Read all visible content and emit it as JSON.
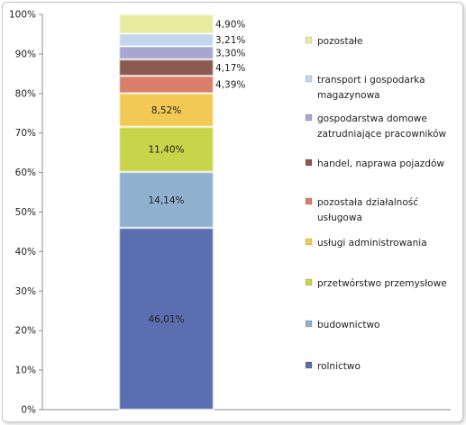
{
  "chart_data": {
    "type": "bar",
    "stacked": true,
    "percent_axis": true,
    "ylim": [
      0,
      100
    ],
    "yticks": [
      "0%",
      "10%",
      "20%",
      "30%",
      "40%",
      "50%",
      "60%",
      "70%",
      "80%",
      "90%",
      "100%"
    ],
    "legend_position": "right",
    "grid": false,
    "series": [
      {
        "name": "rolnictwo",
        "value": 46.01,
        "label": "46,01%",
        "color": "#5a6eb0"
      },
      {
        "name": "budownictwo",
        "value": 14.14,
        "label": "14,14%",
        "color": "#8fb0cf"
      },
      {
        "name": "przetwórstwo przemysłowe",
        "value": 11.4,
        "label": "11,40%",
        "color": "#c8d44a"
      },
      {
        "name": "usługi administrowania",
        "value": 8.52,
        "label": "8,52%",
        "color": "#f3c955"
      },
      {
        "name": "pozostała działalność usługowa",
        "value": 4.39,
        "label": "4,39%",
        "color": "#d97e6a"
      },
      {
        "name": "handel, naprawa pojazdów",
        "value": 4.17,
        "label": "4,17%",
        "color": "#8a5a4e"
      },
      {
        "name": "gospodarstwa domowe zatrudniające pracowników",
        "value": 3.3,
        "label": "3,30%",
        "color": "#a6a6cf"
      },
      {
        "name": "transport i gospodarka magazynowa",
        "value": 3.21,
        "label": "3,21%",
        "color": "#c4d6ec"
      },
      {
        "name": "pozostałe",
        "value": 4.9,
        "label": "4,90%",
        "color": "#e7eb9f"
      }
    ],
    "legend": [
      {
        "lines": [
          "pozostałe"
        ],
        "color": "#e7eb9f"
      },
      {
        "lines": [
          "transport i gospodarka",
          "magazynowa"
        ],
        "color": "#c4d6ec"
      },
      {
        "lines": [
          "gospodarstwa domowe",
          "zatrudniające pracowników"
        ],
        "color": "#a6a6cf"
      },
      {
        "lines": [
          "handel, naprawa pojazdów"
        ],
        "color": "#8a5a4e"
      },
      {
        "lines": [
          "pozostała działalność",
          "usługowa"
        ],
        "color": "#d97e6a"
      },
      {
        "lines": [
          "usługi administrowania"
        ],
        "color": "#f3c955"
      },
      {
        "lines": [
          "przetwórstwo przemysłowe"
        ],
        "color": "#c8d44a"
      },
      {
        "lines": [
          "budownictwo"
        ],
        "color": "#8fb0cf"
      },
      {
        "lines": [
          "rolnictwo"
        ],
        "color": "#5a6eb0"
      }
    ]
  }
}
